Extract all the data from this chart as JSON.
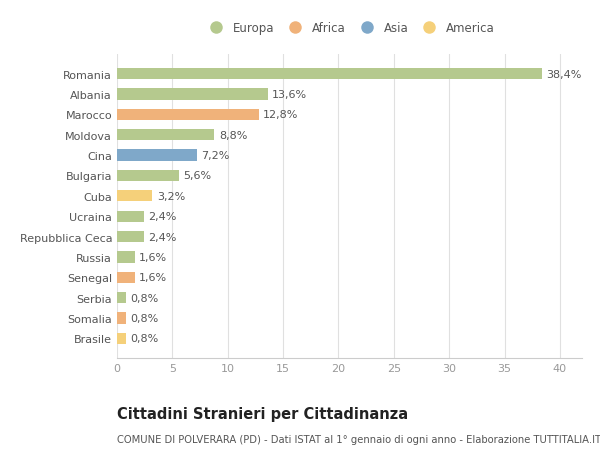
{
  "categories": [
    "Romania",
    "Albania",
    "Marocco",
    "Moldova",
    "Cina",
    "Bulgaria",
    "Cuba",
    "Ucraina",
    "Repubblica Ceca",
    "Russia",
    "Senegal",
    "Serbia",
    "Somalia",
    "Brasile"
  ],
  "values": [
    38.4,
    13.6,
    12.8,
    8.8,
    7.2,
    5.6,
    3.2,
    2.4,
    2.4,
    1.6,
    1.6,
    0.8,
    0.8,
    0.8
  ],
  "labels": [
    "38,4%",
    "13,6%",
    "12,8%",
    "8,8%",
    "7,2%",
    "5,6%",
    "3,2%",
    "2,4%",
    "2,4%",
    "1,6%",
    "1,6%",
    "0,8%",
    "0,8%",
    "0,8%"
  ],
  "colors": [
    "#b5c98e",
    "#b5c98e",
    "#f0b27a",
    "#b5c98e",
    "#7fa8c9",
    "#b5c98e",
    "#f5d07a",
    "#b5c98e",
    "#b5c98e",
    "#b5c98e",
    "#f0b27a",
    "#b5c98e",
    "#f0b27a",
    "#f5d07a"
  ],
  "legend_labels": [
    "Europa",
    "Africa",
    "Asia",
    "America"
  ],
  "legend_colors": [
    "#b5c98e",
    "#f0b27a",
    "#7fa8c9",
    "#f5d07a"
  ],
  "title": "Cittadini Stranieri per Cittadinanza",
  "subtitle": "COMUNE DI POLVERARA (PD) - Dati ISTAT al 1° gennaio di ogni anno - Elaborazione TUTTITALIA.IT",
  "xlim": [
    0,
    42
  ],
  "xticks": [
    0,
    5,
    10,
    15,
    20,
    25,
    30,
    35,
    40
  ],
  "background_color": "#ffffff",
  "grid_color": "#e0e0e0",
  "bar_height": 0.55,
  "label_fontsize": 8,
  "tick_fontsize": 8,
  "ylabel_fontsize": 8,
  "title_fontsize": 10.5,
  "subtitle_fontsize": 7.2,
  "legend_fontsize": 8.5
}
